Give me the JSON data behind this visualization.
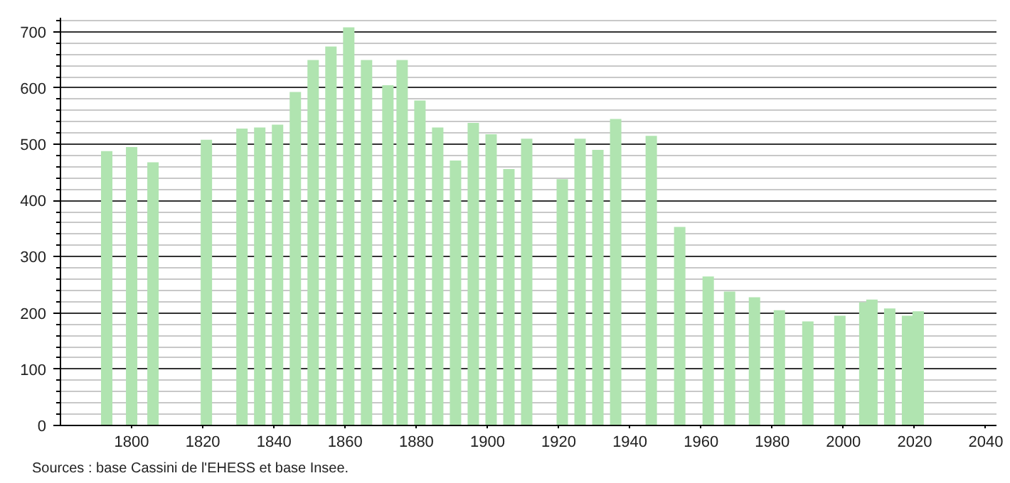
{
  "chart_data": {
    "type": "bar",
    "x": [
      1793,
      1800,
      1806,
      1821,
      1831,
      1836,
      1841,
      1846,
      1851,
      1856,
      1861,
      1866,
      1872,
      1876,
      1881,
      1886,
      1891,
      1896,
      1901,
      1906,
      1911,
      1921,
      1926,
      1931,
      1936,
      1946,
      1954,
      1962,
      1968,
      1975,
      1982,
      1990,
      1999,
      2006,
      2008,
      2013,
      2018,
      2021
    ],
    "values": [
      488,
      495,
      468,
      508,
      528,
      530,
      535,
      593,
      650,
      674,
      708,
      650,
      605,
      650,
      578,
      530,
      471,
      538,
      518,
      456,
      510,
      438,
      510,
      490,
      545,
      515,
      353,
      265,
      238,
      228,
      205,
      185,
      195,
      219,
      224,
      208,
      195,
      203
    ],
    "color": "#b0e4b0",
    "xlim": [
      1780,
      2043
    ],
    "xticks": [
      1800,
      1820,
      1840,
      1860,
      1880,
      1900,
      1920,
      1940,
      1960,
      1980,
      2000,
      2020,
      2040
    ],
    "ylim": [
      0,
      725
    ],
    "yticks": [
      0,
      100,
      200,
      300,
      400,
      500,
      600,
      700
    ],
    "grid": "y",
    "annotations": [
      "Sources : base Cassini de l'EHESS et base Insee."
    ]
  }
}
